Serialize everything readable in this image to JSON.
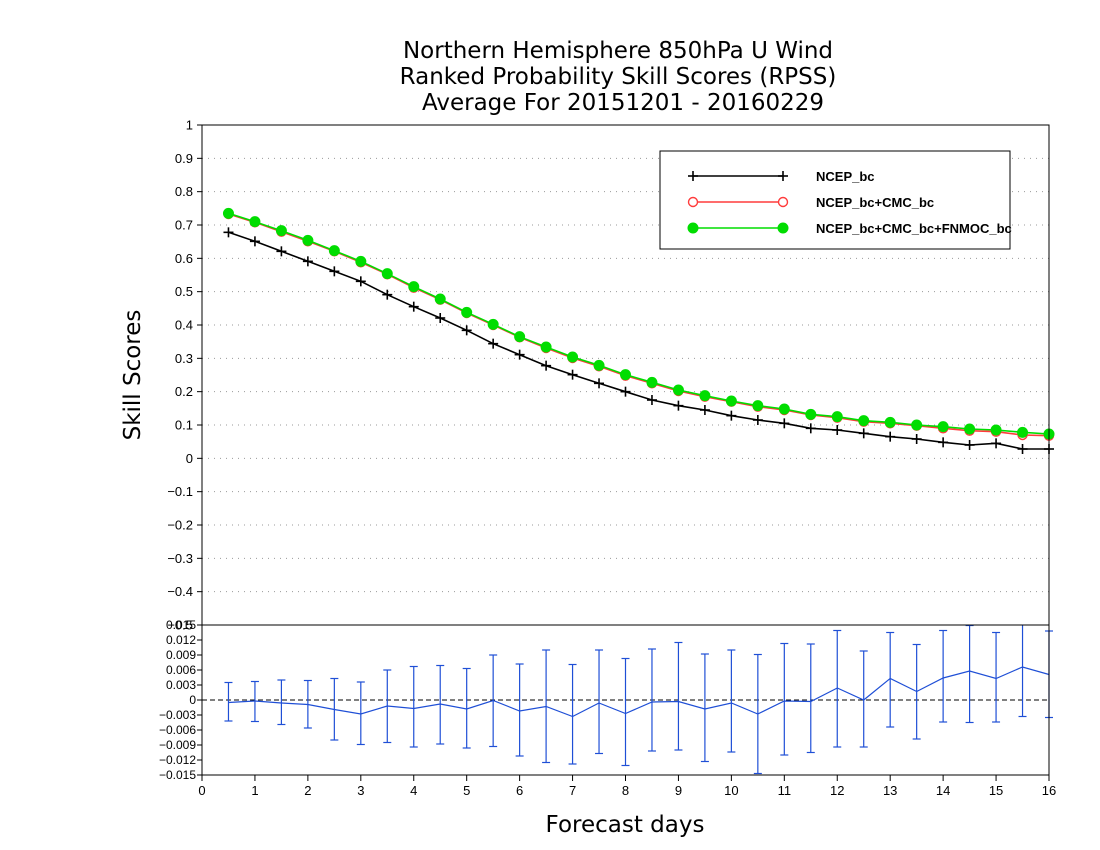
{
  "chart_data": [
    {
      "type": "line",
      "title": [
        "Northern Hemisphere 850hPa U Wind",
        "Ranked Probability Skill Scores (RPSS)",
        "Average For 20151201 - 20160229"
      ],
      "xlabel": "Forecast days",
      "ylabel": "Skill Scores",
      "xlim": [
        0,
        16
      ],
      "ylim": [
        -0.5,
        1
      ],
      "yticks": [
        "1",
        "0.9",
        "0.8",
        "0.7",
        "0.6",
        "0.5",
        "0.4",
        "0.3",
        "0.2",
        "0.1",
        "0",
        "−0.1",
        "−0.2",
        "−0.3",
        "−0.4",
        "−0.5"
      ],
      "ytick_values": [
        1,
        0.9,
        0.8,
        0.7,
        0.6,
        0.5,
        0.4,
        0.3,
        0.2,
        0.1,
        0,
        -0.1,
        -0.2,
        -0.3,
        -0.4,
        -0.5
      ],
      "grid": true,
      "legend_position": "top-right",
      "x": [
        0.5,
        1,
        1.5,
        2,
        2.5,
        3,
        3.5,
        4,
        4.5,
        5,
        5.5,
        6,
        6.5,
        7,
        7.5,
        8,
        8.5,
        9,
        9.5,
        10,
        10.5,
        11,
        11.5,
        12,
        12.5,
        13,
        13.5,
        14,
        14.5,
        15,
        15.5,
        16
      ],
      "series": [
        {
          "name": "NCEP_bc",
          "color": "#000000",
          "marker": "plus",
          "values": [
            0.678,
            0.651,
            0.621,
            0.591,
            0.561,
            0.531,
            0.491,
            0.455,
            0.421,
            0.384,
            0.344,
            0.311,
            0.278,
            0.251,
            0.225,
            0.2,
            0.175,
            0.158,
            0.145,
            0.128,
            0.115,
            0.105,
            0.09,
            0.085,
            0.075,
            0.065,
            0.058,
            0.048,
            0.04,
            0.045,
            0.028,
            0.028
          ]
        },
        {
          "name": "NCEP_bc+CMC_bc",
          "color": "#ff3b3b",
          "marker": "open-circle",
          "values": [
            0.733,
            0.708,
            0.68,
            0.651,
            0.621,
            0.588,
            0.552,
            0.512,
            0.476,
            0.436,
            0.4,
            0.363,
            0.331,
            0.301,
            0.276,
            0.248,
            0.225,
            0.202,
            0.185,
            0.17,
            0.155,
            0.145,
            0.13,
            0.122,
            0.11,
            0.105,
            0.098,
            0.09,
            0.083,
            0.08,
            0.07,
            0.068
          ]
        },
        {
          "name": "NCEP_bc+CMC_bc+FNMOC_bc",
          "color": "#00dd00",
          "marker": "filled-circle",
          "values": [
            0.735,
            0.71,
            0.683,
            0.654,
            0.623,
            0.591,
            0.554,
            0.515,
            0.478,
            0.438,
            0.402,
            0.365,
            0.334,
            0.304,
            0.279,
            0.251,
            0.228,
            0.205,
            0.188,
            0.172,
            0.158,
            0.148,
            0.132,
            0.125,
            0.113,
            0.108,
            0.1,
            0.095,
            0.088,
            0.085,
            0.078,
            0.073
          ]
        }
      ]
    },
    {
      "type": "line",
      "xlim": [
        0,
        16
      ],
      "ylim": [
        -0.015,
        0.015
      ],
      "xticks": [
        "0",
        "1",
        "2",
        "3",
        "4",
        "5",
        "6",
        "7",
        "8",
        "9",
        "10",
        "11",
        "12",
        "13",
        "14",
        "15",
        "16"
      ],
      "yticks": [
        "0.015",
        "0.012",
        "0.009",
        "0.006",
        "0.003",
        "0",
        "−0.003",
        "−0.006",
        "−0.009",
        "−0.012",
        "−0.015"
      ],
      "ytick_values": [
        0.015,
        0.012,
        0.009,
        0.006,
        0.003,
        0,
        -0.003,
        -0.006,
        -0.009,
        -0.012,
        -0.015
      ],
      "color": "#1f4fd6",
      "x": [
        0.5,
        1,
        1.5,
        2,
        2.5,
        3,
        3.5,
        4,
        4.5,
        5,
        5.5,
        6,
        6.5,
        7,
        7.5,
        8,
        8.5,
        9,
        9.5,
        10,
        10.5,
        11,
        11.5,
        12,
        12.5,
        13,
        13.5,
        14,
        14.5,
        15,
        15.5,
        16
      ],
      "values": [
        -0.0005,
        -0.0002,
        -0.0006,
        -0.0009,
        -0.0019,
        -0.0028,
        -0.0012,
        -0.0017,
        -0.0008,
        -0.0018,
        -0.0001,
        -0.0022,
        -0.0013,
        -0.0033,
        -0.0006,
        -0.0027,
        -0.0004,
        -0.0003,
        -0.0018,
        -0.0006,
        -0.0028,
        -0.0002,
        -0.0003,
        0.0024,
        0.0,
        0.0043,
        0.0017,
        0.0044,
        0.0058,
        0.0043,
        0.0066,
        0.0051
      ],
      "err_upper": [
        0.0035,
        0.0037,
        0.004,
        0.0039,
        0.0043,
        0.0036,
        0.006,
        0.0067,
        0.0069,
        0.0063,
        0.009,
        0.0072,
        0.01,
        0.0071,
        0.01,
        0.0083,
        0.0102,
        0.0115,
        0.0092,
        0.01,
        0.0091,
        0.0113,
        0.0112,
        0.0139,
        0.0098,
        0.0135,
        0.0111,
        0.0139,
        0.0149,
        0.0135,
        0.0157,
        0.0138
      ],
      "err_lower": [
        -0.0042,
        -0.0043,
        -0.0049,
        -0.0056,
        -0.008,
        -0.0089,
        -0.0085,
        -0.0094,
        -0.0088,
        -0.0096,
        -0.0093,
        -0.0112,
        -0.0125,
        -0.0128,
        -0.0107,
        -0.0131,
        -0.0102,
        -0.01,
        -0.0123,
        -0.0104,
        -0.0147,
        -0.011,
        -0.0105,
        -0.0094,
        -0.0094,
        -0.0054,
        -0.0078,
        -0.0044,
        -0.0045,
        -0.0044,
        -0.0033,
        -0.0035
      ]
    }
  ]
}
